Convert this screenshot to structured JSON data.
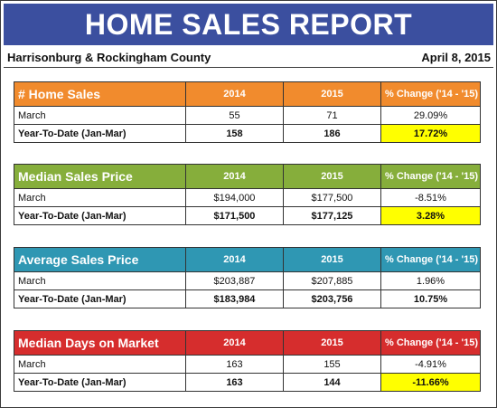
{
  "report": {
    "title": "HOME SALES REPORT",
    "region": "Harrisonburg & Rockingham County",
    "date": "April 8, 2015"
  },
  "columns": {
    "y2014": "2014",
    "y2015": "2015",
    "change": "% Change ('14 - '15)"
  },
  "tables": [
    {
      "title": "# Home Sales",
      "color": "#f18b2d",
      "rows": [
        {
          "label": "March",
          "v2014": "55",
          "v2015": "71",
          "change": "29.09%"
        },
        {
          "label": "Year-To-Date (Jan-Mar)",
          "v2014": "158",
          "v2015": "186",
          "change": "17.72%",
          "highlight": true
        }
      ]
    },
    {
      "title": "Median Sales Price",
      "color": "#86ae3b",
      "rows": [
        {
          "label": "March",
          "v2014": "$194,000",
          "v2015": "$177,500",
          "change": "-8.51%"
        },
        {
          "label": "Year-To-Date (Jan-Mar)",
          "v2014": "$171,500",
          "v2015": "$177,125",
          "change": "3.28%",
          "highlight": true
        }
      ]
    },
    {
      "title": "Average Sales Price",
      "color": "#2f97b3",
      "rows": [
        {
          "label": "March",
          "v2014": "$203,887",
          "v2015": "$207,885",
          "change": "1.96%"
        },
        {
          "label": "Year-To-Date (Jan-Mar)",
          "v2014": "$183,984",
          "v2015": "$203,756",
          "change": "10.75%",
          "highlight": false
        }
      ]
    },
    {
      "title": "Median Days on Market",
      "color": "#d62d2d",
      "rows": [
        {
          "label": "March",
          "v2014": "163",
          "v2015": "155",
          "change": "-4.91%"
        },
        {
          "label": "Year-To-Date (Jan-Mar)",
          "v2014": "163",
          "v2015": "144",
          "change": "-11.66%",
          "highlight": true
        }
      ]
    }
  ]
}
